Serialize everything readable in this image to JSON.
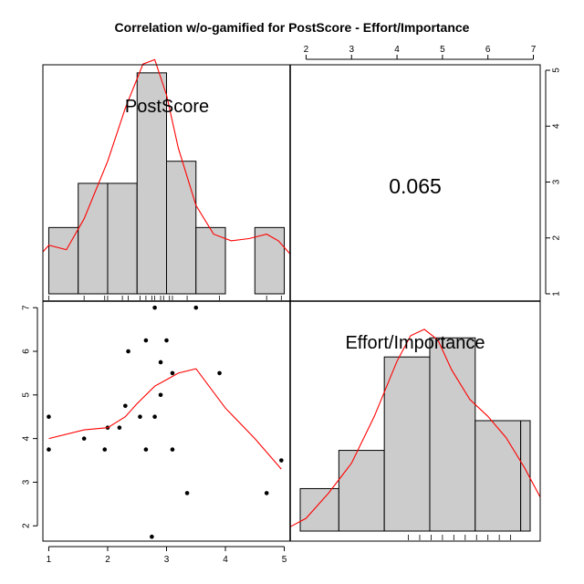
{
  "chart_data": {
    "type": "pairs",
    "title": "Correlation w/o-gamified for PostScore - Effort/Importance",
    "variables": [
      "PostScore",
      "Effort/Importance"
    ],
    "correlation": "0.065",
    "axes": {
      "postscore": {
        "range": [
          0.9,
          5.1
        ],
        "ticks": [
          1,
          2,
          3,
          4,
          5
        ]
      },
      "effort": {
        "range": [
          1.65,
          7.15
        ],
        "ticks": [
          2,
          3,
          4,
          5,
          6,
          7
        ]
      },
      "right_axis_ticks": [
        1,
        2,
        3,
        4,
        5
      ]
    },
    "histogram_postscore": {
      "bin_edges": [
        1.0,
        1.5,
        2.0,
        2.5,
        3.0,
        3.5,
        4.0,
        4.5,
        5.0
      ],
      "counts": [
        1.5,
        2.5,
        2.5,
        5,
        3,
        1.5,
        0,
        1.5
      ],
      "density_curve_x": [
        0.9,
        1.0,
        1.3,
        1.6,
        2.0,
        2.3,
        2.6,
        2.8,
        3.0,
        3.2,
        3.5,
        3.8,
        4.1,
        4.4,
        4.7,
        4.9,
        5.1
      ],
      "density_curve_y": [
        0.95,
        1.1,
        1.0,
        1.7,
        3.0,
        4.2,
        5.2,
        5.3,
        4.5,
        3.3,
        2.0,
        1.35,
        1.2,
        1.25,
        1.35,
        1.2,
        0.9
      ],
      "rug": [
        1.0,
        1.6,
        1.95,
        2.0,
        2.25,
        2.35,
        2.55,
        2.65,
        2.75,
        2.8,
        2.9,
        2.95,
        3.05,
        3.1,
        3.35,
        3.9,
        4.7,
        4.95
      ]
    },
    "histogram_effort": {
      "bin_edges": [
        1.65,
        2.5,
        3.5,
        4.5,
        5.5,
        6.5,
        7.15
      ],
      "counts": [
        1,
        1.9,
        4.1,
        4.55,
        2.6,
        2.6
      ],
      "density_curve_x": [
        1.65,
        2.0,
        2.5,
        3.0,
        3.5,
        4.0,
        4.3,
        4.6,
        4.9,
        5.2,
        5.6,
        6.0,
        6.4,
        6.8,
        7.15
      ],
      "density_curve_y": [
        0.1,
        0.3,
        0.9,
        1.6,
        2.7,
        4.0,
        4.6,
        4.75,
        4.5,
        3.8,
        3.1,
        2.7,
        2.2,
        1.5,
        0.8
      ],
      "rug": [
        4.25,
        4.5,
        4.75,
        5.0,
        5.25,
        5.5,
        5.75,
        6.0,
        6.25,
        6.5
      ]
    },
    "scatter": {
      "x_variable": "PostScore",
      "y_variable": "Effort/Importance",
      "points": [
        [
          1.0,
          4.5
        ],
        [
          1.0,
          3.75
        ],
        [
          1.6,
          4.0
        ],
        [
          1.95,
          3.75
        ],
        [
          2.0,
          4.25
        ],
        [
          2.2,
          4.25
        ],
        [
          2.3,
          4.75
        ],
        [
          2.35,
          6.0
        ],
        [
          2.55,
          4.5
        ],
        [
          2.65,
          6.25
        ],
        [
          2.65,
          3.75
        ],
        [
          2.75,
          1.75
        ],
        [
          2.8,
          7.0
        ],
        [
          2.8,
          4.5
        ],
        [
          2.9,
          5.75
        ],
        [
          2.9,
          5.0
        ],
        [
          3.0,
          6.25
        ],
        [
          3.1,
          5.5
        ],
        [
          3.1,
          3.75
        ],
        [
          3.35,
          2.75
        ],
        [
          3.5,
          7.0
        ],
        [
          3.9,
          5.5
        ],
        [
          4.7,
          2.75
        ],
        [
          4.95,
          3.5
        ]
      ],
      "smoother": [
        [
          1.0,
          4.0
        ],
        [
          1.6,
          4.2
        ],
        [
          2.0,
          4.25
        ],
        [
          2.3,
          4.5
        ],
        [
          2.5,
          4.8
        ],
        [
          2.8,
          5.2
        ],
        [
          3.0,
          5.35
        ],
        [
          3.2,
          5.5
        ],
        [
          3.5,
          5.6
        ],
        [
          4.0,
          4.7
        ],
        [
          4.5,
          4.0
        ],
        [
          4.95,
          3.3
        ]
      ]
    },
    "colors": {
      "bars": "#cccccc",
      "curves": "#ff0000",
      "points": "#000000"
    }
  }
}
